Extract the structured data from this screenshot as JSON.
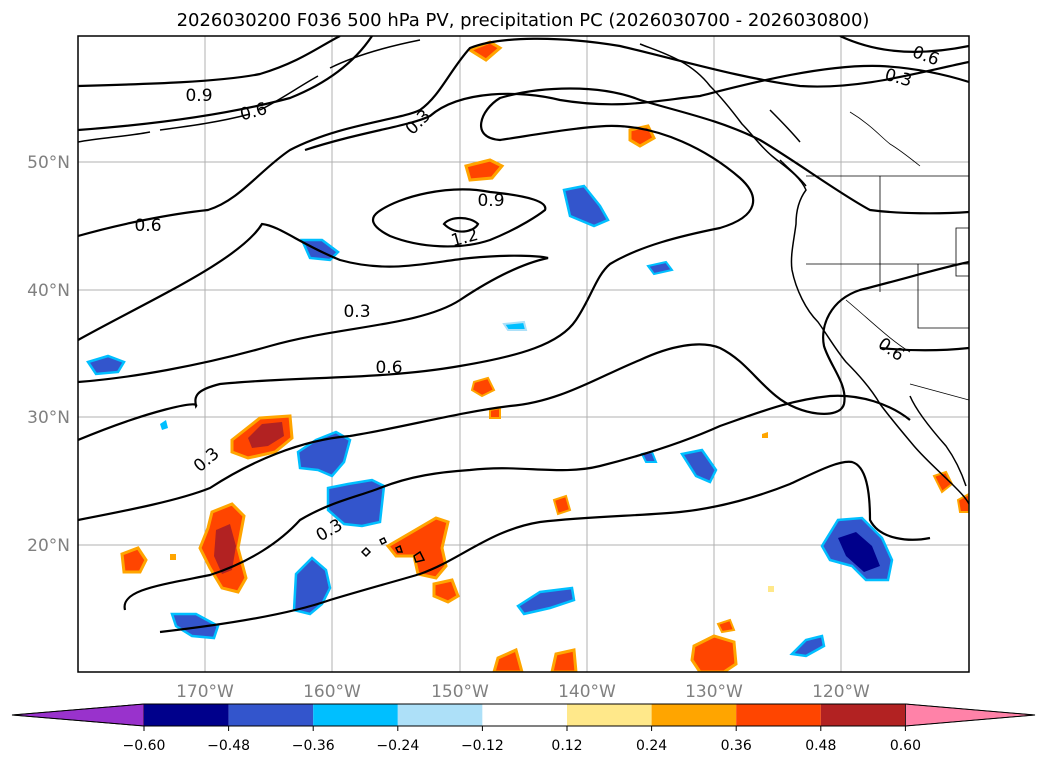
{
  "title": "2026030200 F036 500 hPa PV, precipitation PC (2026030700 - 2026030800)",
  "longitude_labels": [
    "170°W",
    "160°W",
    "150°W",
    "140°W",
    "130°W",
    "120°W"
  ],
  "latitude_labels": [
    "50°N",
    "40°N",
    "30°N",
    "20°N"
  ],
  "contour_labels": [
    "0.9",
    "0.6",
    "0.3",
    "0.9",
    "1.2",
    "0.6",
    "0.3",
    "0.6",
    "0.3",
    "0.3",
    "0.6",
    "0.3",
    "0.6"
  ],
  "colorbar": {
    "tick_labels": [
      "−0.60",
      "−0.48",
      "−0.36",
      "−0.24",
      "−0.12",
      "0.12",
      "0.24",
      "0.36",
      "0.48",
      "0.60"
    ],
    "colors": {
      "under": "#9932CC",
      "bins": [
        "#00008B",
        "#3355CC",
        "#00BFFF",
        "#ADE0F8",
        "#FFFFFF",
        "#FFE88A",
        "#FFA500",
        "#FF4500",
        "#B22222"
      ],
      "over": "#FF82A8"
    }
  }
}
